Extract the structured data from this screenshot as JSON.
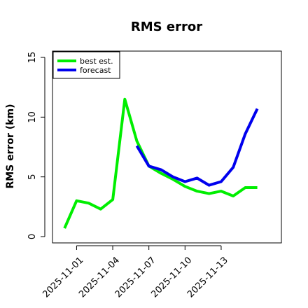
{
  "chart_data": {
    "type": "line",
    "title": "RMS error",
    "xlabel": "",
    "ylabel": "RMS error (km)",
    "ylim": [
      0,
      15
    ],
    "yticks": [
      0,
      5,
      10,
      15
    ],
    "xticks": [
      "2025-11-01",
      "2025-11-04",
      "2025-11-07",
      "2025-11-10",
      "2025-11-13"
    ],
    "xlim": [
      "2025-10-30",
      "2025-11-18"
    ],
    "grid": false,
    "legend_position": "top-left",
    "series": [
      {
        "name": "best est.",
        "color": "#00ee00",
        "x": [
          "2025-10-31",
          "2025-11-01",
          "2025-11-02",
          "2025-11-03",
          "2025-11-04",
          "2025-11-05",
          "2025-11-06",
          "2025-11-07",
          "2025-11-08",
          "2025-11-09",
          "2025-11-10",
          "2025-11-11",
          "2025-11-12",
          "2025-11-13",
          "2025-11-14",
          "2025-11-15",
          "2025-11-16"
        ],
        "values": [
          0.7,
          3.0,
          2.8,
          2.3,
          3.1,
          11.5,
          8.0,
          5.9,
          5.3,
          4.8,
          4.2,
          3.8,
          3.6,
          3.8,
          3.4,
          4.1,
          4.1
        ]
      },
      {
        "name": "forecast",
        "color": "#0000ee",
        "x": [
          "2025-11-06",
          "2025-11-07",
          "2025-11-08",
          "2025-11-09",
          "2025-11-10",
          "2025-11-11",
          "2025-11-12",
          "2025-11-13",
          "2025-11-14",
          "2025-11-15",
          "2025-11-16"
        ],
        "values": [
          7.6,
          5.9,
          5.6,
          5.0,
          4.6,
          4.9,
          4.3,
          4.6,
          5.8,
          8.6,
          10.7
        ]
      }
    ]
  }
}
